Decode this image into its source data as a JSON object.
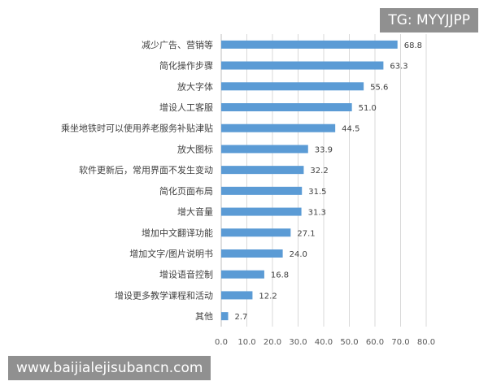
{
  "chart_data": {
    "type": "bar",
    "orientation": "horizontal",
    "categories": [
      "减少广告、营销等",
      "简化操作步骤",
      "放大字体",
      "增设人工客服",
      "乘坐地铁时可以使用养老服务补贴津贴",
      "放大图标",
      "软件更新后，常用界面不发生变动",
      "简化页面布局",
      "增大音量",
      "增加中文翻译功能",
      "增加文字/图片说明书",
      "增设语音控制",
      "增设更多教学课程和活动",
      "其他"
    ],
    "values": [
      68.8,
      63.3,
      55.6,
      51.0,
      44.5,
      33.9,
      32.2,
      31.5,
      31.3,
      27.1,
      24.0,
      16.8,
      12.2,
      2.7
    ],
    "value_labels": [
      "68.8",
      "63.3",
      "55.6",
      "51.0",
      "44.5",
      "33.9",
      "32.2",
      "31.5",
      "31.3",
      "27.1",
      "24.0",
      "16.8",
      "12.2",
      "2.7"
    ],
    "xlim": [
      0,
      80
    ],
    "xticks": [
      "0.0",
      "10.0",
      "20.0",
      "30.0",
      "40.0",
      "50.0",
      "60.0",
      "70.0",
      "80.0"
    ],
    "grid": true,
    "legend": "none",
    "bar_color": "#5b9bd5",
    "title": "",
    "xlabel": "",
    "ylabel": ""
  },
  "watermarks": {
    "top_right": "TG: MYYJJPP",
    "bottom_left": "www.baijialejisubancn.com"
  }
}
